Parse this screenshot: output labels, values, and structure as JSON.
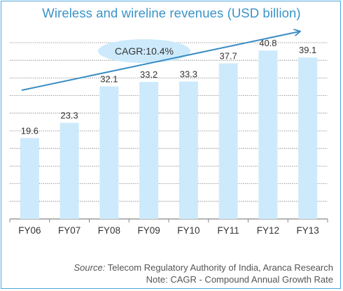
{
  "chart_data": {
    "type": "bar",
    "title": "Wireless and wireline revenues (USD billion)",
    "categories": [
      "FY06",
      "FY07",
      "FY08",
      "FY09",
      "FY10",
      "FY11",
      "FY12",
      "FY13"
    ],
    "values": [
      19.6,
      23.3,
      32.1,
      33.2,
      33.3,
      37.7,
      40.8,
      39.1
    ],
    "data_labels": [
      "19.6",
      "23.3",
      "32.1",
      "33.2",
      "33.3",
      "37.7",
      "40.8",
      "39.1"
    ],
    "ylim": [
      0,
      42.7
    ],
    "grid": true,
    "bar_color": "#cdeafc",
    "grid_color": "#666666",
    "annotation": {
      "text": "CAGR:10.4%",
      "ellipse_color": "#cdeafc",
      "arrow_color": "#3a8cc4"
    }
  },
  "source": {
    "label": "Source:",
    "text": " Telecom Regulatory Authority of India, Aranca Research"
  },
  "note": "Note: CAGR - Compound Annual Growth Rate"
}
